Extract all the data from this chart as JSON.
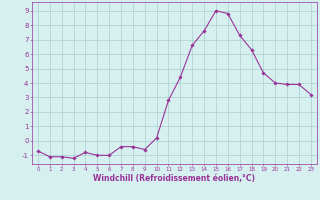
{
  "x": [
    0,
    1,
    2,
    3,
    4,
    5,
    6,
    7,
    8,
    9,
    10,
    11,
    12,
    13,
    14,
    15,
    16,
    17,
    18,
    19,
    20,
    21,
    22,
    23
  ],
  "y": [
    -0.7,
    -1.1,
    -1.1,
    -1.2,
    -0.8,
    -1.0,
    -1.0,
    -0.4,
    -0.4,
    -0.6,
    0.2,
    2.8,
    4.4,
    6.6,
    7.6,
    9.0,
    8.8,
    7.3,
    6.3,
    4.7,
    4.0,
    3.9,
    3.9,
    3.2
  ],
  "line_color": "#993399",
  "marker": "D",
  "marker_size": 1.8,
  "linewidth": 0.8,
  "xlabel": "Windchill (Refroidissement éolien,°C)",
  "xlabel_fontsize": 5.5,
  "ylabel_ticks": [
    -1,
    0,
    1,
    2,
    3,
    4,
    5,
    6,
    7,
    8,
    9
  ],
  "xticks": [
    0,
    1,
    2,
    3,
    4,
    5,
    6,
    7,
    8,
    9,
    10,
    11,
    12,
    13,
    14,
    15,
    16,
    17,
    18,
    19,
    20,
    21,
    22,
    23
  ],
  "xlim": [
    -0.5,
    23.5
  ],
  "ylim": [
    -1.6,
    9.6
  ],
  "bg_color": "#d6f0f0",
  "grid_color": "#aacece",
  "tick_color": "#993399",
  "label_color": "#993399",
  "tick_fontsize_x": 4.0,
  "tick_fontsize_y": 5.0
}
